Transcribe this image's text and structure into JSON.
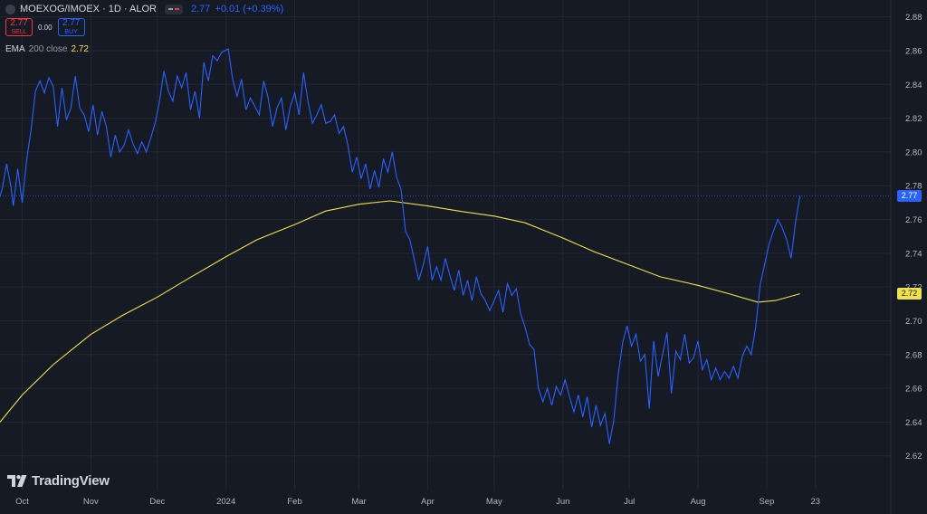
{
  "header": {
    "symbol": "MOEXOG/IMOEX · 1D · ALOR",
    "last": "2.77",
    "change": "+0.01 (+0.39%)"
  },
  "trade": {
    "sell_price": "2.77",
    "sell_label": "SELL",
    "spread": "0.00",
    "buy_price": "2.77",
    "buy_label": "BUY"
  },
  "indicator": {
    "name": "EMA",
    "params": "200 close",
    "value": "2.72"
  },
  "logo_text": "TradingView",
  "price_tags": {
    "last": "2.77",
    "ema": "2.72"
  },
  "colors": {
    "price": "#2962ff",
    "ema": "#f0e04b",
    "background": "#161a25",
    "grid": "#242733",
    "axis_text": "#b2b5be"
  },
  "chart_data": {
    "type": "line",
    "title": "",
    "y_axis": {
      "min": 2.6,
      "max": 2.89,
      "ticks": [
        2.62,
        2.64,
        2.66,
        2.68,
        2.7,
        2.72,
        2.74,
        2.76,
        2.78,
        2.8,
        2.82,
        2.84,
        2.86,
        2.88
      ],
      "side": "right"
    },
    "x_axis": {
      "min": "2023-09-21",
      "max": "2024-10-27",
      "ticks": [
        {
          "label": "Oct",
          "date": "2023-10-01"
        },
        {
          "label": "Nov",
          "date": "2023-11-01"
        },
        {
          "label": "Dec",
          "date": "2023-12-01"
        },
        {
          "label": "2024",
          "date": "2024-01-01"
        },
        {
          "label": "Feb",
          "date": "2024-02-01"
        },
        {
          "label": "Mar",
          "date": "2024-03-01"
        },
        {
          "label": "Apr",
          "date": "2024-04-01"
        },
        {
          "label": "May",
          "date": "2024-05-01"
        },
        {
          "label": "Jun",
          "date": "2024-06-01"
        },
        {
          "label": "Jul",
          "date": "2024-07-01"
        },
        {
          "label": "Aug",
          "date": "2024-08-01"
        },
        {
          "label": "Sep",
          "date": "2024-09-01"
        },
        {
          "label": "23",
          "date": "2024-09-23"
        }
      ]
    },
    "grid": true,
    "last_price_line": 2.774,
    "series": [
      {
        "name": "MOEXOG/IMOEX",
        "color": "#2962ff",
        "points": [
          [
            "2023-09-21",
            2.774
          ],
          [
            "2023-09-22",
            2.778
          ],
          [
            "2023-09-24",
            2.793
          ],
          [
            "2023-09-26",
            2.779
          ],
          [
            "2023-09-27",
            2.768
          ],
          [
            "2023-09-29",
            2.79
          ],
          [
            "2023-10-01",
            2.77
          ],
          [
            "2023-10-03",
            2.795
          ],
          [
            "2023-10-05",
            2.813
          ],
          [
            "2023-10-07",
            2.836
          ],
          [
            "2023-10-09",
            2.842
          ],
          [
            "2023-10-11",
            2.835
          ],
          [
            "2023-10-13",
            2.844
          ],
          [
            "2023-10-15",
            2.839
          ],
          [
            "2023-10-17",
            2.815
          ],
          [
            "2023-10-19",
            2.838
          ],
          [
            "2023-10-21",
            2.819
          ],
          [
            "2023-10-23",
            2.826
          ],
          [
            "2023-10-25",
            2.845
          ],
          [
            "2023-10-27",
            2.826
          ],
          [
            "2023-10-29",
            2.822
          ],
          [
            "2023-10-31",
            2.812
          ],
          [
            "2023-11-02",
            2.828
          ],
          [
            "2023-11-04",
            2.81
          ],
          [
            "2023-11-06",
            2.824
          ],
          [
            "2023-11-08",
            2.815
          ],
          [
            "2023-11-10",
            2.797
          ],
          [
            "2023-11-12",
            2.81
          ],
          [
            "2023-11-14",
            2.8
          ],
          [
            "2023-11-16",
            2.804
          ],
          [
            "2023-11-18",
            2.813
          ],
          [
            "2023-11-20",
            2.805
          ],
          [
            "2023-11-22",
            2.799
          ],
          [
            "2023-11-24",
            2.806
          ],
          [
            "2023-11-26",
            2.8
          ],
          [
            "2023-11-28",
            2.808
          ],
          [
            "2023-11-30",
            2.817
          ],
          [
            "2023-12-02",
            2.83
          ],
          [
            "2023-12-04",
            2.848
          ],
          [
            "2023-12-06",
            2.836
          ],
          [
            "2023-12-08",
            2.83
          ],
          [
            "2023-12-10",
            2.845
          ],
          [
            "2023-12-12",
            2.838
          ],
          [
            "2023-12-14",
            2.847
          ],
          [
            "2023-12-16",
            2.825
          ],
          [
            "2023-12-18",
            2.836
          ],
          [
            "2023-12-20",
            2.82
          ],
          [
            "2023-12-22",
            2.853
          ],
          [
            "2023-12-24",
            2.842
          ],
          [
            "2023-12-26",
            2.857
          ],
          [
            "2023-12-28",
            2.854
          ],
          [
            "2023-12-30",
            2.859
          ],
          [
            "2024-01-02",
            2.861
          ],
          [
            "2024-01-04",
            2.843
          ],
          [
            "2024-01-06",
            2.833
          ],
          [
            "2024-01-08",
            2.843
          ],
          [
            "2024-01-10",
            2.825
          ],
          [
            "2024-01-12",
            2.832
          ],
          [
            "2024-01-14",
            2.827
          ],
          [
            "2024-01-16",
            2.822
          ],
          [
            "2024-01-18",
            2.842
          ],
          [
            "2024-01-20",
            2.832
          ],
          [
            "2024-01-22",
            2.815
          ],
          [
            "2024-01-24",
            2.826
          ],
          [
            "2024-01-26",
            2.832
          ],
          [
            "2024-01-28",
            2.813
          ],
          [
            "2024-01-30",
            2.827
          ],
          [
            "2024-02-01",
            2.835
          ],
          [
            "2024-02-03",
            2.822
          ],
          [
            "2024-02-05",
            2.847
          ],
          [
            "2024-02-07",
            2.83
          ],
          [
            "2024-02-09",
            2.817
          ],
          [
            "2024-02-11",
            2.822
          ],
          [
            "2024-02-13",
            2.828
          ],
          [
            "2024-02-15",
            2.817
          ],
          [
            "2024-02-17",
            2.818
          ],
          [
            "2024-02-19",
            2.822
          ],
          [
            "2024-02-21",
            2.811
          ],
          [
            "2024-02-23",
            2.815
          ],
          [
            "2024-02-25",
            2.804
          ],
          [
            "2024-02-27",
            2.788
          ],
          [
            "2024-02-29",
            2.797
          ],
          [
            "2024-03-02",
            2.784
          ],
          [
            "2024-03-04",
            2.793
          ],
          [
            "2024-03-06",
            2.778
          ],
          [
            "2024-03-08",
            2.789
          ],
          [
            "2024-03-10",
            2.779
          ],
          [
            "2024-03-12",
            2.796
          ],
          [
            "2024-03-14",
            2.788
          ],
          [
            "2024-03-16",
            2.8
          ],
          [
            "2024-03-18",
            2.785
          ],
          [
            "2024-03-20",
            2.778
          ],
          [
            "2024-03-22",
            2.753
          ],
          [
            "2024-03-24",
            2.748
          ],
          [
            "2024-03-26",
            2.736
          ],
          [
            "2024-03-28",
            2.724
          ],
          [
            "2024-03-30",
            2.733
          ],
          [
            "2024-04-01",
            2.744
          ],
          [
            "2024-04-03",
            2.724
          ],
          [
            "2024-04-05",
            2.732
          ],
          [
            "2024-04-07",
            2.724
          ],
          [
            "2024-04-09",
            2.737
          ],
          [
            "2024-04-11",
            2.727
          ],
          [
            "2024-04-13",
            2.718
          ],
          [
            "2024-04-15",
            2.73
          ],
          [
            "2024-04-17",
            2.715
          ],
          [
            "2024-04-19",
            2.724
          ],
          [
            "2024-04-21",
            2.712
          ],
          [
            "2024-04-23",
            2.726
          ],
          [
            "2024-04-25",
            2.716
          ],
          [
            "2024-04-27",
            2.712
          ],
          [
            "2024-04-29",
            2.706
          ],
          [
            "2024-05-01",
            2.712
          ],
          [
            "2024-05-03",
            2.718
          ],
          [
            "2024-05-05",
            2.705
          ],
          [
            "2024-05-07",
            2.722
          ],
          [
            "2024-05-09",
            2.715
          ],
          [
            "2024-05-11",
            2.719
          ],
          [
            "2024-05-13",
            2.704
          ],
          [
            "2024-05-15",
            2.696
          ],
          [
            "2024-05-17",
            2.686
          ],
          [
            "2024-05-19",
            2.683
          ],
          [
            "2024-05-21",
            2.66
          ],
          [
            "2024-05-23",
            2.652
          ],
          [
            "2024-05-25",
            2.66
          ],
          [
            "2024-05-27",
            2.65
          ],
          [
            "2024-05-29",
            2.661
          ],
          [
            "2024-05-31",
            2.656
          ],
          [
            "2024-06-02",
            2.665
          ],
          [
            "2024-06-04",
            2.655
          ],
          [
            "2024-06-06",
            2.646
          ],
          [
            "2024-06-08",
            2.656
          ],
          [
            "2024-06-10",
            2.643
          ],
          [
            "2024-06-12",
            2.655
          ],
          [
            "2024-06-14",
            2.637
          ],
          [
            "2024-06-16",
            2.65
          ],
          [
            "2024-06-18",
            2.638
          ],
          [
            "2024-06-20",
            2.645
          ],
          [
            "2024-06-22",
            2.627
          ],
          [
            "2024-06-24",
            2.641
          ],
          [
            "2024-06-26",
            2.668
          ],
          [
            "2024-06-28",
            2.687
          ],
          [
            "2024-06-30",
            2.697
          ],
          [
            "2024-07-02",
            2.685
          ],
          [
            "2024-07-04",
            2.692
          ],
          [
            "2024-07-06",
            2.676
          ],
          [
            "2024-07-08",
            2.68
          ],
          [
            "2024-07-10",
            2.648
          ],
          [
            "2024-07-12",
            2.688
          ],
          [
            "2024-07-14",
            2.667
          ],
          [
            "2024-07-16",
            2.68
          ],
          [
            "2024-07-18",
            2.693
          ],
          [
            "2024-07-20",
            2.657
          ],
          [
            "2024-07-22",
            2.682
          ],
          [
            "2024-07-24",
            2.677
          ],
          [
            "2024-07-26",
            2.692
          ],
          [
            "2024-07-28",
            2.675
          ],
          [
            "2024-07-30",
            2.678
          ],
          [
            "2024-08-01",
            2.688
          ],
          [
            "2024-08-03",
            2.671
          ],
          [
            "2024-08-05",
            2.677
          ],
          [
            "2024-08-07",
            2.665
          ],
          [
            "2024-08-09",
            2.672
          ],
          [
            "2024-08-11",
            2.665
          ],
          [
            "2024-08-13",
            2.67
          ],
          [
            "2024-08-15",
            2.666
          ],
          [
            "2024-08-17",
            2.673
          ],
          [
            "2024-08-19",
            2.666
          ],
          [
            "2024-08-21",
            2.679
          ],
          [
            "2024-08-23",
            2.685
          ],
          [
            "2024-08-25",
            2.68
          ],
          [
            "2024-08-27",
            2.696
          ],
          [
            "2024-08-29",
            2.721
          ],
          [
            "2024-08-31",
            2.733
          ],
          [
            "2024-09-02",
            2.745
          ],
          [
            "2024-09-04",
            2.753
          ],
          [
            "2024-09-06",
            2.76
          ],
          [
            "2024-09-08",
            2.755
          ],
          [
            "2024-09-10",
            2.748
          ],
          [
            "2024-09-12",
            2.737
          ],
          [
            "2024-09-14",
            2.758
          ],
          [
            "2024-09-16",
            2.774
          ]
        ]
      },
      {
        "name": "EMA 200 close",
        "color": "#f0e04b",
        "points": [
          [
            "2023-09-21",
            2.64
          ],
          [
            "2023-10-01",
            2.656
          ],
          [
            "2023-10-15",
            2.674
          ],
          [
            "2023-11-01",
            2.692
          ],
          [
            "2023-11-15",
            2.703
          ],
          [
            "2023-12-01",
            2.714
          ],
          [
            "2023-12-15",
            2.725
          ],
          [
            "2024-01-01",
            2.738
          ],
          [
            "2024-01-15",
            2.748
          ],
          [
            "2024-02-01",
            2.757
          ],
          [
            "2024-02-15",
            2.765
          ],
          [
            "2024-03-01",
            2.769
          ],
          [
            "2024-03-15",
            2.771
          ],
          [
            "2024-04-01",
            2.768
          ],
          [
            "2024-04-15",
            2.765
          ],
          [
            "2024-05-01",
            2.762
          ],
          [
            "2024-05-15",
            2.758
          ],
          [
            "2024-06-01",
            2.749
          ],
          [
            "2024-06-15",
            2.741
          ],
          [
            "2024-07-01",
            2.733
          ],
          [
            "2024-07-15",
            2.726
          ],
          [
            "2024-08-01",
            2.721
          ],
          [
            "2024-08-15",
            2.716
          ],
          [
            "2024-08-28",
            2.711
          ],
          [
            "2024-09-05",
            2.712
          ],
          [
            "2024-09-16",
            2.716
          ]
        ]
      }
    ]
  }
}
